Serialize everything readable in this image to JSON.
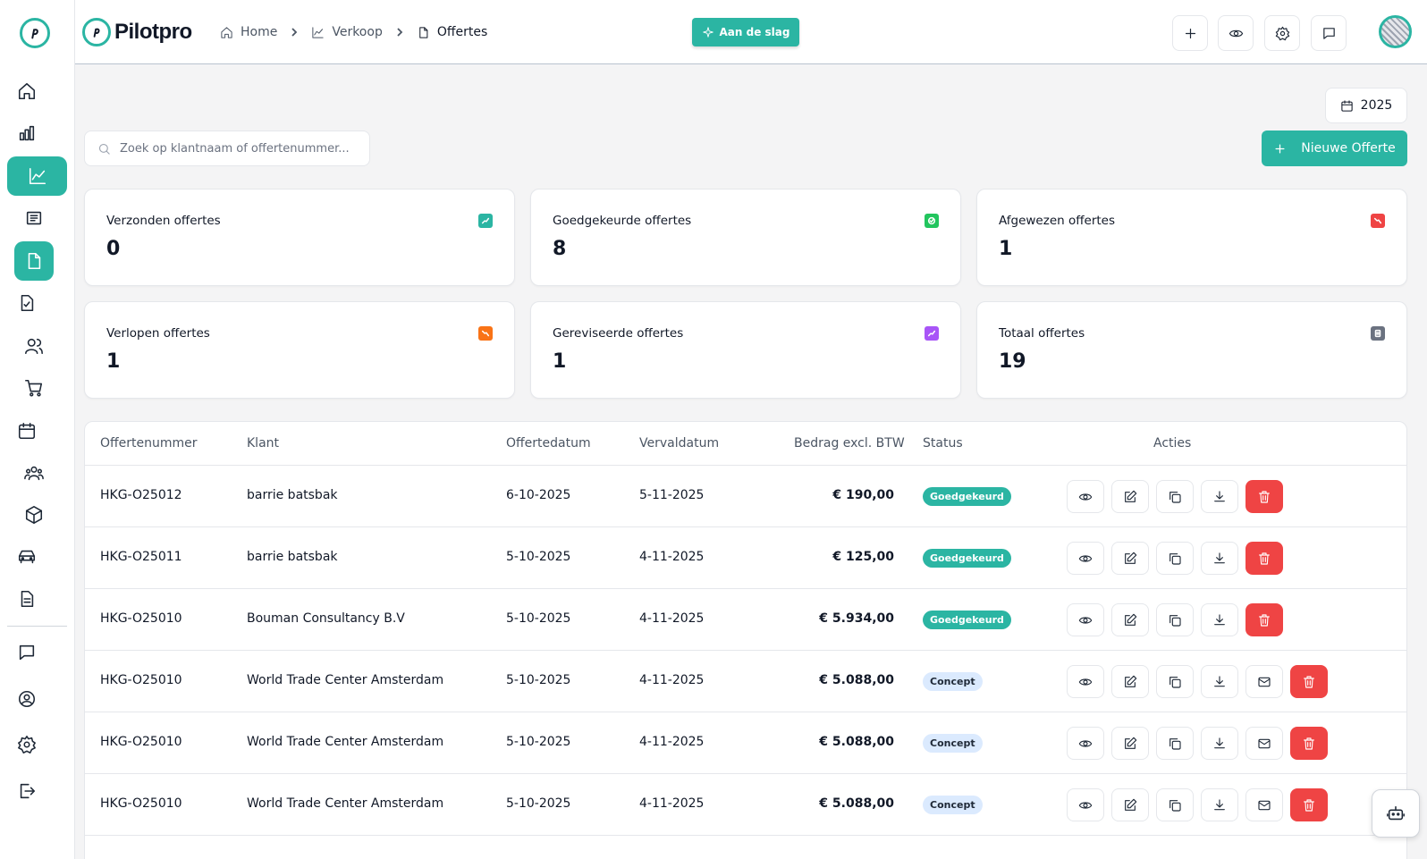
{
  "app": {
    "brand": "Pilotpro",
    "accent_color": "#2bb5a3",
    "danger_color": "#ef4444"
  },
  "header": {
    "breadcrumb": [
      {
        "label": "Home",
        "icon": "home-icon"
      },
      {
        "label": "Verkoop",
        "icon": "chart-line-icon"
      },
      {
        "label": "Offertes",
        "icon": "document-icon"
      }
    ],
    "start_label": "Aan de slag",
    "actions": [
      "plus-icon",
      "eye-icon",
      "gear-icon",
      "chat-icon"
    ]
  },
  "sidebar": {
    "items": [
      "home-icon",
      "bar-chart-icon",
      "line-chart-icon",
      "receipt-icon",
      "document-icon",
      "document-check-icon",
      "users-icon",
      "cart-icon",
      "calendar-icon",
      "team-icon",
      "box-icon",
      "car-icon",
      "file-text-icon",
      "chat-icon",
      "user-circle-icon",
      "settings-icon",
      "logout-icon"
    ]
  },
  "toolbar": {
    "year": "2025",
    "search_placeholder": "Zoek op klantnaam of offertenummer...",
    "new_label": "Nieuwe Offerte"
  },
  "stats": [
    {
      "label": "Verzonden offertes",
      "value": "0",
      "color": "#2bb5a3",
      "icon": "trend-up-icon"
    },
    {
      "label": "Goedgekeurde offertes",
      "value": "8",
      "color": "#22c55e",
      "icon": "check-circle-icon"
    },
    {
      "label": "Afgewezen offertes",
      "value": "1",
      "color": "#ef4444",
      "icon": "trend-down-icon"
    },
    {
      "label": "Verlopen offertes",
      "value": "1",
      "color": "#f97316",
      "icon": "trend-down-icon"
    },
    {
      "label": "Gereviseerde offertes",
      "value": "1",
      "color": "#a855f7",
      "icon": "trend-up-icon"
    },
    {
      "label": "Totaal offertes",
      "value": "19",
      "color": "#6b7280",
      "icon": "list-icon"
    }
  ],
  "table": {
    "headers": {
      "number": "Offertenummer",
      "client": "Klant",
      "date": "Offertedatum",
      "due": "Vervaldatum",
      "amount": "Bedrag excl. BTW",
      "status": "Status",
      "actions": "Acties"
    },
    "rows": [
      {
        "number": "HKG-O25012",
        "client": "barrie batsbak",
        "date": "6-10-2025",
        "due": "5-11-2025",
        "amount": "€ 190,00",
        "status": "Goedgekeurd"
      },
      {
        "number": "HKG-O25011",
        "client": "barrie batsbak",
        "date": "5-10-2025",
        "due": "4-11-2025",
        "amount": "€ 125,00",
        "status": "Goedgekeurd"
      },
      {
        "number": "HKG-O25010",
        "client": "Bouman Consultancy B.V",
        "date": "5-10-2025",
        "due": "4-11-2025",
        "amount": "€ 5.934,00",
        "status": "Goedgekeurd"
      },
      {
        "number": "HKG-O25010",
        "client": "World Trade Center Amsterdam",
        "date": "5-10-2025",
        "due": "4-11-2025",
        "amount": "€ 5.088,00",
        "status": "Concept"
      },
      {
        "number": "HKG-O25010",
        "client": "World Trade Center Amsterdam",
        "date": "5-10-2025",
        "due": "4-11-2025",
        "amount": "€ 5.088,00",
        "status": "Concept"
      },
      {
        "number": "HKG-O25010",
        "client": "World Trade Center Amsterdam",
        "date": "5-10-2025",
        "due": "4-11-2025",
        "amount": "€ 5.088,00",
        "status": "Concept"
      }
    ]
  }
}
